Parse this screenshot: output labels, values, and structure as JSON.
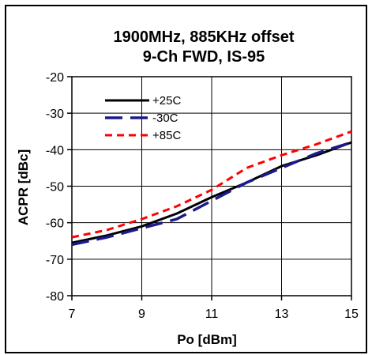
{
  "chart_data": {
    "type": "line",
    "title_lines": [
      "1900MHz, 885KHz offset",
      "9-Ch FWD, IS-95"
    ],
    "xlabel": "Po [dBm]",
    "ylabel": "ACPR [dBc]",
    "xlim": [
      7,
      15
    ],
    "ylim": [
      -80,
      -20
    ],
    "xticks": [
      7,
      9,
      11,
      13,
      15
    ],
    "yticks": [
      -20,
      -30,
      -40,
      -50,
      -60,
      -70,
      -80
    ],
    "grid": true,
    "legend_position": "top-left",
    "series": [
      {
        "name": "+25C",
        "color": "#000000",
        "style": "solid",
        "x": [
          7,
          8,
          9,
          10,
          11,
          12,
          13,
          14,
          15
        ],
        "y": [
          -65.5,
          -63.5,
          -61,
          -57.5,
          -53,
          -49,
          -44.5,
          -41.5,
          -38
        ]
      },
      {
        "name": "-30C",
        "color": "#1a1a8c",
        "style": "longdash",
        "x": [
          7,
          8,
          9,
          10,
          11,
          12,
          13,
          14,
          15
        ],
        "y": [
          -66,
          -64,
          -61.5,
          -59,
          -54,
          -49,
          -45,
          -41,
          -38
        ]
      },
      {
        "name": "+85C",
        "color": "#ff0000",
        "style": "shortdash",
        "x": [
          7,
          8,
          9,
          10,
          11,
          12,
          13,
          14,
          15
        ],
        "y": [
          -64,
          -62,
          -59,
          -55.5,
          -51,
          -45,
          -41.5,
          -38.5,
          -35
        ]
      }
    ]
  }
}
